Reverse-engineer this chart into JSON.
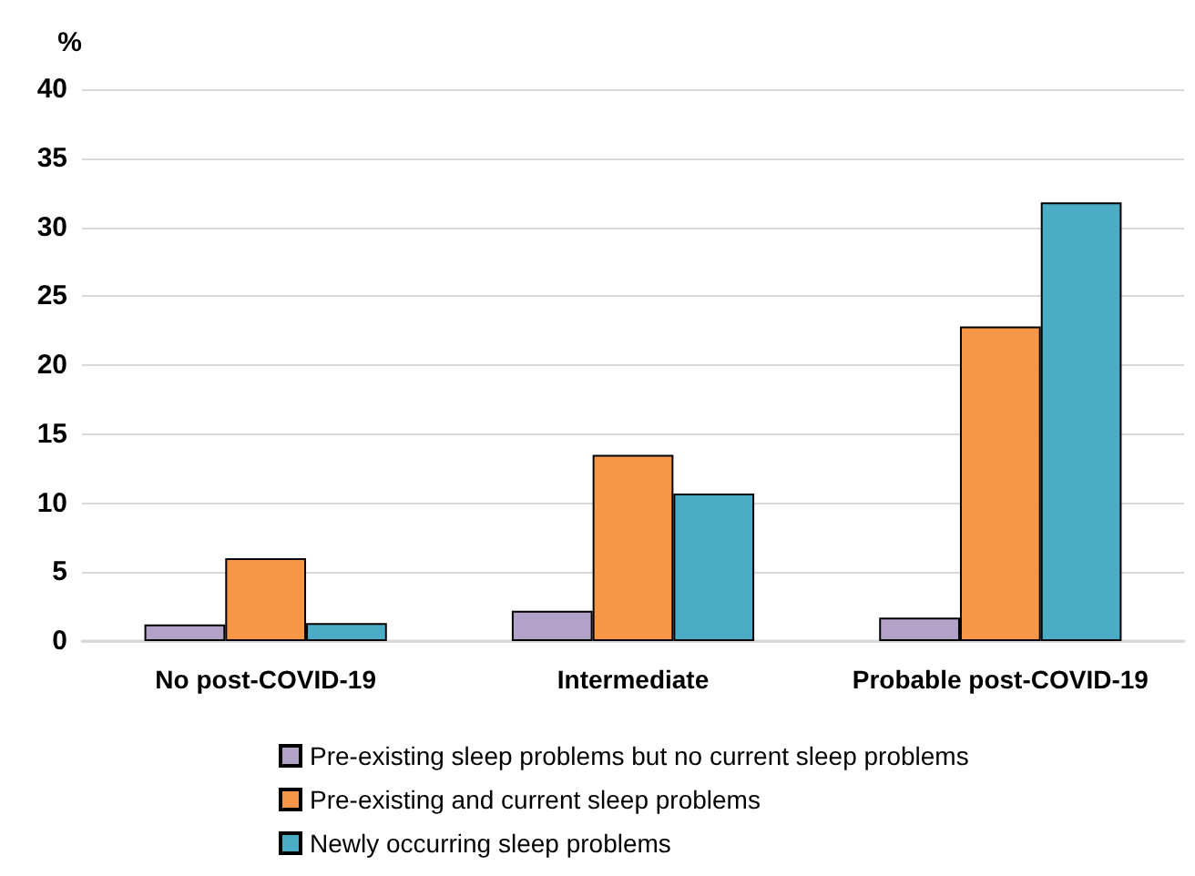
{
  "chart_data": {
    "type": "bar",
    "ylabel": "%",
    "categories": [
      "No post-COVID-19",
      "Intermediate",
      "Probable post-COVID-19"
    ],
    "series": [
      {
        "name": "Pre-existing sleep problems but no current sleep problems",
        "color": "#b3a2c7",
        "values": [
          1.2,
          2.2,
          1.7
        ]
      },
      {
        "name": "Pre-existing and current sleep problems",
        "color": "#f79646",
        "values": [
          6.0,
          13.5,
          22.8
        ]
      },
      {
        "name": "Newly occurring sleep problems",
        "color": "#4bacc6",
        "values": [
          1.3,
          10.7,
          31.8
        ]
      }
    ],
    "ylim": [
      0,
      40
    ],
    "yticks": [
      0,
      5,
      10,
      15,
      20,
      25,
      30,
      35,
      40
    ],
    "grid": "y",
    "legend": "bottom"
  }
}
